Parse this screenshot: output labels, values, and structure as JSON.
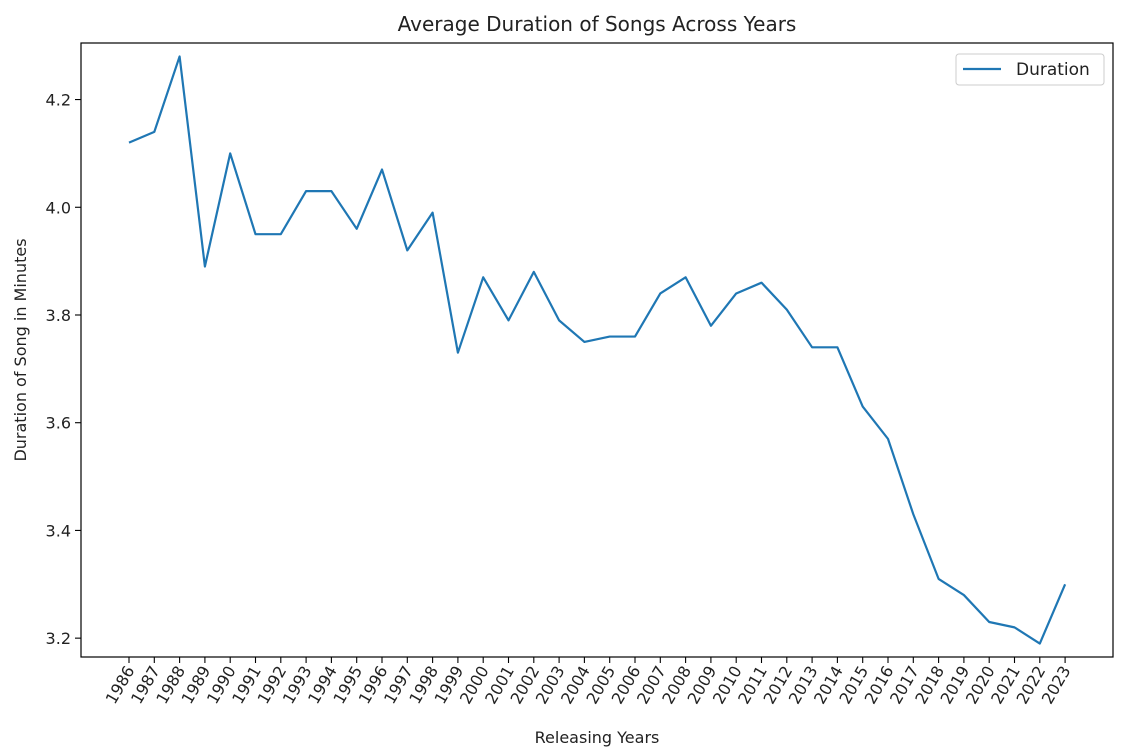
{
  "chart_data": {
    "type": "line",
    "title": "Average Duration of Songs Across Years",
    "xlabel": "Releasing Years",
    "ylabel": "Duration of Song in Minutes",
    "categories": [
      "1986",
      "1987",
      "1988",
      "1989",
      "1990",
      "1991",
      "1992",
      "1993",
      "1994",
      "1995",
      "1996",
      "1997",
      "1998",
      "1999",
      "2000",
      "2001",
      "2002",
      "2003",
      "2004",
      "2005",
      "2006",
      "2007",
      "2008",
      "2009",
      "2010",
      "2011",
      "2012",
      "2013",
      "2014",
      "2015",
      "2016",
      "2017",
      "2018",
      "2019",
      "2020",
      "2021",
      "2022",
      "2023"
    ],
    "series": [
      {
        "name": "Duration",
        "color": "#1f77b4",
        "values": [
          4.12,
          4.14,
          4.28,
          3.89,
          4.1,
          3.95,
          3.95,
          4.03,
          4.03,
          3.96,
          4.07,
          3.92,
          3.99,
          3.73,
          3.87,
          3.79,
          3.88,
          3.79,
          3.75,
          3.76,
          3.76,
          3.84,
          3.87,
          3.78,
          3.84,
          3.86,
          3.81,
          3.74,
          3.74,
          3.63,
          3.57,
          3.43,
          3.31,
          3.28,
          3.23,
          3.22,
          3.19,
          3.3
        ]
      }
    ],
    "ylim": [
      3.165,
      4.305
    ],
    "yticks": [
      3.2,
      3.4,
      3.6,
      3.8,
      4.0,
      4.2
    ],
    "ytick_labels": [
      "3.2",
      "3.4",
      "3.6",
      "3.8",
      "4.0",
      "4.2"
    ],
    "grid": false,
    "legend_position": "upper right"
  }
}
